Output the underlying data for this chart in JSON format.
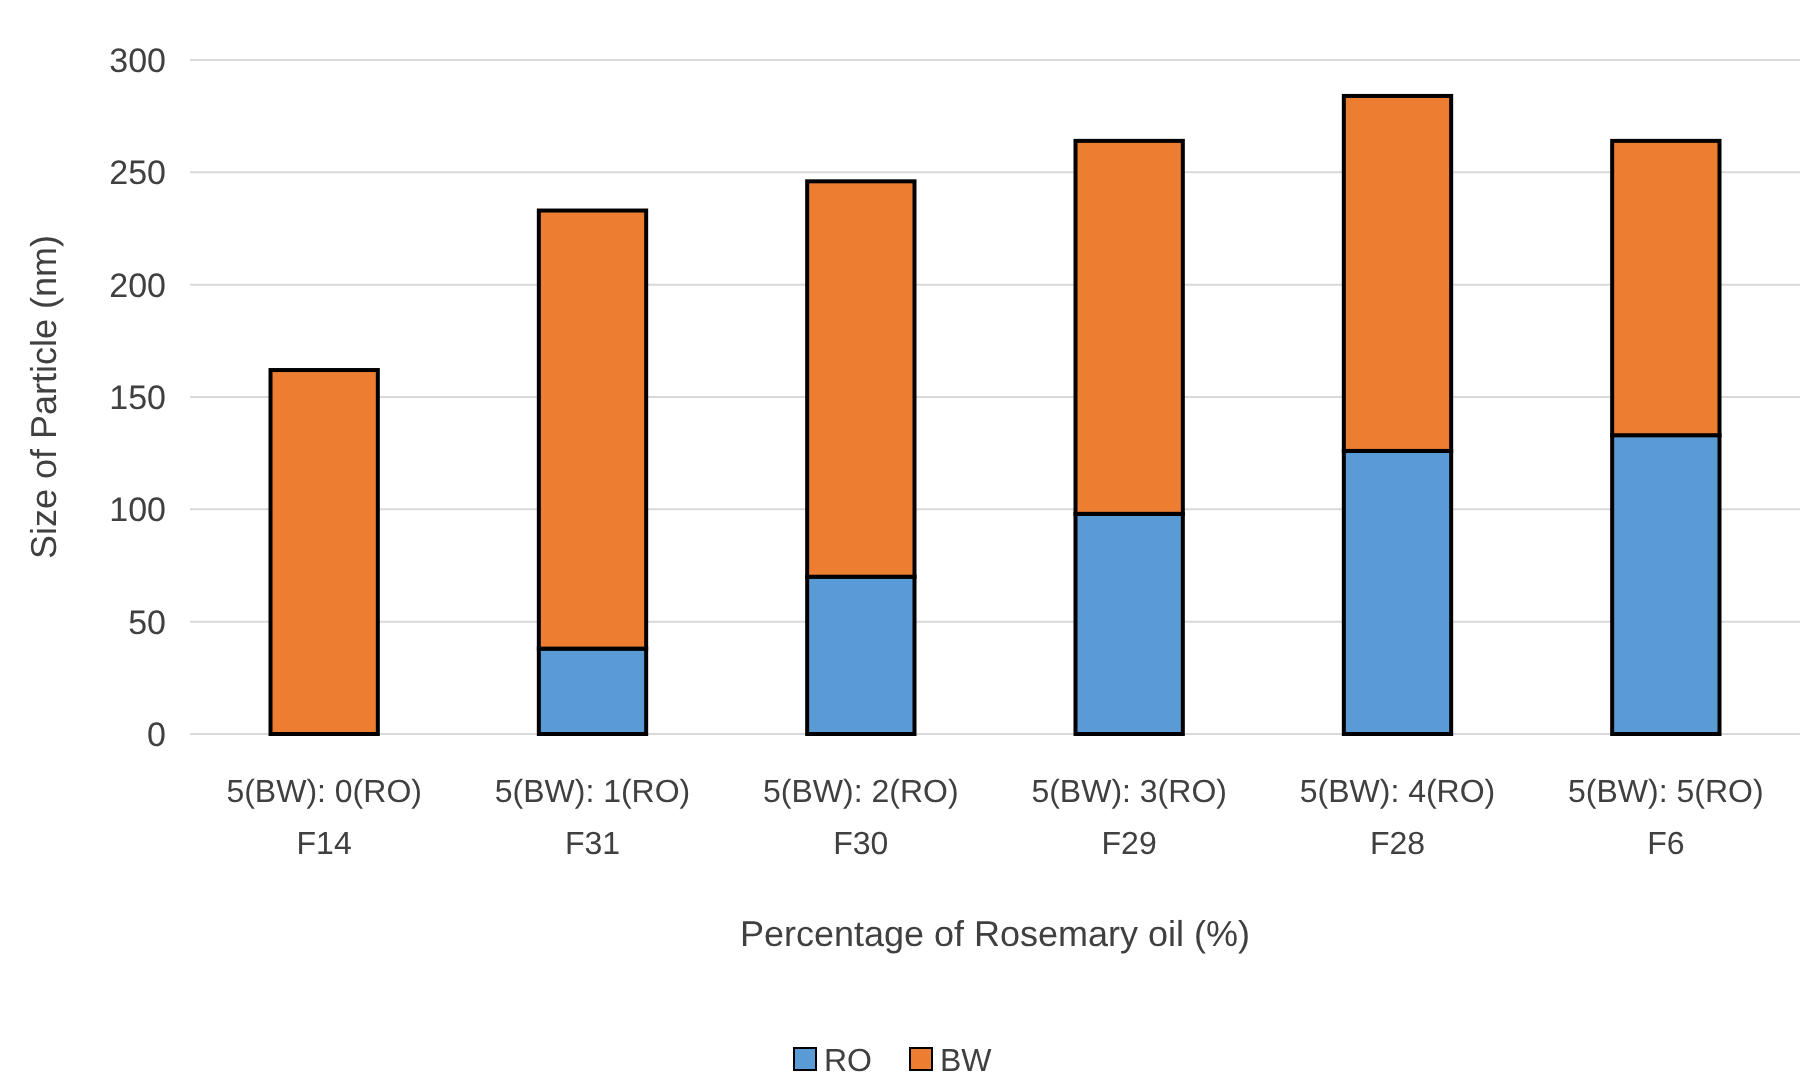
{
  "chart_data": {
    "type": "bar",
    "stacked": true,
    "xlabel": "Percentage of Rosemary oil (%)",
    "ylabel": "Size of Particle (nm)",
    "categories": [
      "5(BW): 0(RO)\nF14",
      "5(BW): 1(RO)\nF31",
      "5(BW): 2(RO)\nF30",
      "5(BW): 3(RO)\nF29",
      "5(BW): 4(RO)\nF28",
      "5(BW): 5(RO)\nF6"
    ],
    "series": [
      {
        "name": "RO",
        "color": "#5b9bd5",
        "values": [
          0,
          38,
          70,
          98,
          126,
          133
        ]
      },
      {
        "name": "BW",
        "color": "#ed7d31",
        "values": [
          162,
          195,
          176,
          166,
          158,
          131
        ]
      }
    ],
    "ylim": [
      0,
      300
    ],
    "yticks": [
      0,
      50,
      100,
      150,
      200,
      250,
      300
    ],
    "grid": "y",
    "legend": "bottom"
  }
}
